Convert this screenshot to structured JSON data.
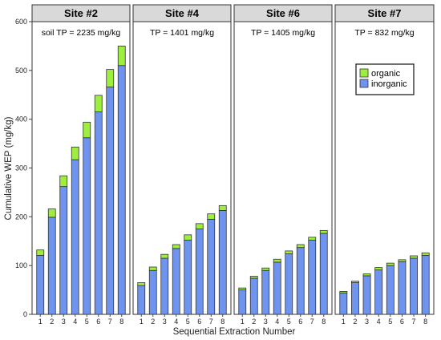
{
  "chart_data": {
    "type": "bar",
    "stacked": true,
    "xlabel": "Sequential Extraction Number",
    "ylabel": "Cumulative WEP (mg/kg)",
    "ylim": [
      0,
      600
    ],
    "yticks": [
      0,
      100,
      200,
      300,
      400,
      500,
      600
    ],
    "categories": [
      "1",
      "2",
      "3",
      "4",
      "5",
      "6",
      "7",
      "8"
    ],
    "colors": {
      "inorganic": "#6f94f0",
      "organic": "#9dee3f"
    },
    "legend": {
      "position": "top-right of Site #7 panel",
      "entries": [
        {
          "label": "organic",
          "series": "organic"
        },
        {
          "label": "inorganic",
          "series": "inorganic"
        }
      ]
    },
    "panels": [
      {
        "title": "Site #2",
        "annotation": "soil TP = 2235 mg/kg",
        "series": [
          {
            "name": "inorganic",
            "values": [
              121,
              199,
              262,
              317,
              362,
              415,
              466,
              510
            ]
          },
          {
            "name": "organic",
            "values": [
              11,
              17,
              22,
              26,
              32,
              34,
              36,
              40
            ]
          }
        ]
      },
      {
        "title": "Site #4",
        "annotation": "TP = 1401 mg/kg",
        "series": [
          {
            "name": "inorganic",
            "values": [
              59,
              90,
              115,
              135,
              152,
              175,
              195,
              213
            ]
          },
          {
            "name": "organic",
            "values": [
              6,
              7,
              8,
              8,
              11,
              11,
              11,
              10
            ]
          }
        ]
      },
      {
        "title": "Site #6",
        "annotation": "TP = 1405 mg/kg",
        "series": [
          {
            "name": "inorganic",
            "values": [
              50,
              74,
              90,
              107,
              124,
              137,
              152,
              166
            ]
          },
          {
            "name": "organic",
            "values": [
              4,
              4,
              5,
              6,
              6,
              6,
              6,
              6
            ]
          }
        ]
      },
      {
        "title": "Site #7",
        "annotation": "TP = 832 mg/kg",
        "series": [
          {
            "name": "inorganic",
            "values": [
              44,
              65,
              79,
              91,
              100,
              108,
              115,
              121
            ]
          },
          {
            "name": "organic",
            "values": [
              3,
              3,
              4,
              5,
              5,
              4,
              5,
              5
            ]
          }
        ]
      }
    ]
  }
}
